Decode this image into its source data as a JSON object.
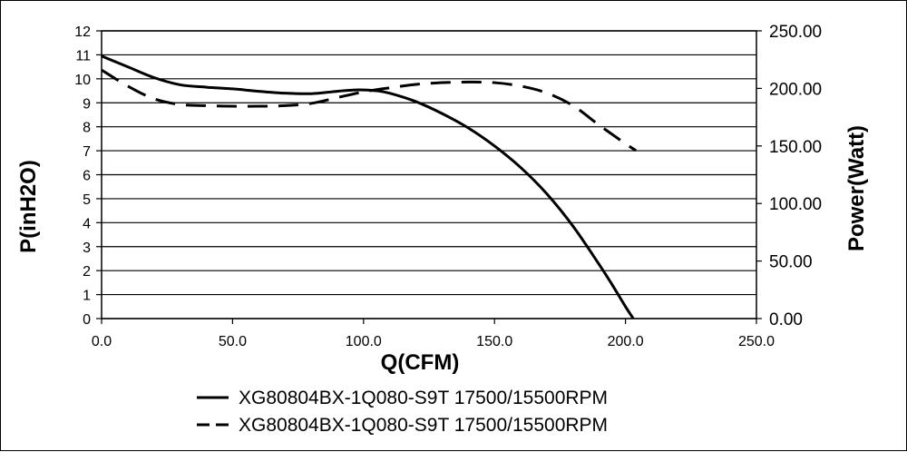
{
  "chart_data": {
    "type": "line",
    "xlabel": "Q(CFM)",
    "ylabel_left": "P(inH2O)",
    "ylabel_right": "Power(Watt)",
    "xlim": [
      0,
      250
    ],
    "ylim_left": [
      0,
      12
    ],
    "ylim_right": [
      0,
      250
    ],
    "x_ticks": [
      "0.0",
      "50.0",
      "100.0",
      "150.0",
      "200.0",
      "250.0"
    ],
    "y_ticks_left": [
      "0",
      "1",
      "2",
      "3",
      "4",
      "5",
      "6",
      "7",
      "8",
      "9",
      "10",
      "11",
      "12"
    ],
    "y_ticks_right": [
      "0.00",
      "50.00",
      "100.00",
      "150.00",
      "200.00",
      "250.00"
    ],
    "grid": "horizontal",
    "legend_position": "bottom",
    "series": [
      {
        "name": "XG80804BX-1Q080-S9T 17500/15500RPM",
        "axis": "left",
        "style": "solid",
        "color": "#000000",
        "x": [
          0,
          10,
          20,
          30,
          40,
          50,
          60,
          70,
          80,
          90,
          98,
          105,
          110,
          120,
          130,
          140,
          150,
          160,
          170,
          180,
          190,
          195,
          200,
          203
        ],
        "y": [
          10.95,
          10.5,
          10.05,
          9.75,
          9.65,
          9.58,
          9.48,
          9.4,
          9.38,
          9.48,
          9.54,
          9.5,
          9.4,
          9.05,
          8.55,
          7.95,
          7.2,
          6.3,
          5.2,
          3.85,
          2.25,
          1.4,
          0.5,
          0
        ]
      },
      {
        "name": "XG80804BX-1Q080-S9T 17500/15500RPM",
        "axis": "right",
        "style": "dashed",
        "color": "#000000",
        "x": [
          0,
          10,
          20,
          30,
          40,
          50,
          60,
          70,
          80,
          90,
          100,
          110,
          120,
          130,
          140,
          150,
          160,
          170,
          180,
          190,
          200,
          204
        ],
        "y": [
          216,
          202,
          191,
          186,
          185,
          184.5,
          184.5,
          185,
          187,
          192,
          197,
          200.5,
          203.5,
          205,
          205.5,
          205,
          202,
          196,
          185,
          168,
          152,
          146
        ]
      }
    ]
  }
}
